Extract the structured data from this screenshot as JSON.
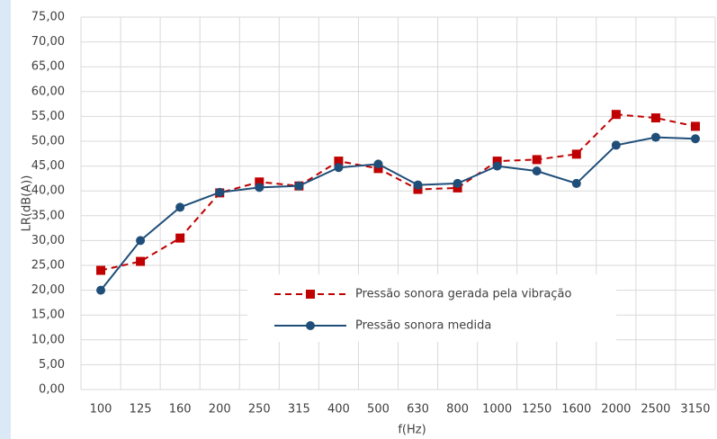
{
  "chart_data": {
    "type": "line",
    "x_label": "f(Hz)",
    "y_label": "LR(dB(A))",
    "categories": [
      "100",
      "125",
      "160",
      "200",
      "250",
      "315",
      "400",
      "500",
      "630",
      "800",
      "1000",
      "1250",
      "1600",
      "2000",
      "2500",
      "3150"
    ],
    "series": [
      {
        "name": "Pressão sonora gerada pela vibração",
        "color": "#c00000",
        "dash": true,
        "marker": "square",
        "values": [
          24.0,
          25.8,
          30.5,
          39.6,
          41.8,
          41.0,
          46.0,
          44.5,
          40.3,
          40.6,
          46.0,
          46.3,
          47.4,
          55.4,
          54.7,
          53.0
        ]
      },
      {
        "name": "Pressão sonora medida",
        "color": "#1f4e79",
        "dash": false,
        "marker": "circle",
        "values": [
          20.0,
          30.0,
          36.7,
          39.7,
          40.7,
          41.0,
          44.7,
          45.4,
          41.2,
          41.5,
          45.0,
          44.0,
          41.5,
          49.2,
          50.8,
          50.5
        ]
      }
    ],
    "ylim": [
      0,
      75
    ],
    "yticks": [
      {
        "value": 0,
        "label": "0,00"
      },
      {
        "value": 5,
        "label": "5,00"
      },
      {
        "value": 10,
        "label": "10,00"
      },
      {
        "value": 15,
        "label": "15,00"
      },
      {
        "value": 20,
        "label": "20,00"
      },
      {
        "value": 25,
        "label": "25,00"
      },
      {
        "value": 30,
        "label": "30,00"
      },
      {
        "value": 35,
        "label": "35,00"
      },
      {
        "value": 40,
        "label": "40,00"
      },
      {
        "value": 45,
        "label": "45,00"
      },
      {
        "value": 50,
        "label": "50,00"
      },
      {
        "value": 55,
        "label": "55,00"
      },
      {
        "value": 60,
        "label": "60,00"
      },
      {
        "value": 65,
        "label": "65,00"
      },
      {
        "value": 70,
        "label": "70,00"
      },
      {
        "value": 75,
        "label": "75,00"
      }
    ],
    "grid": true,
    "legend": "lower center"
  }
}
